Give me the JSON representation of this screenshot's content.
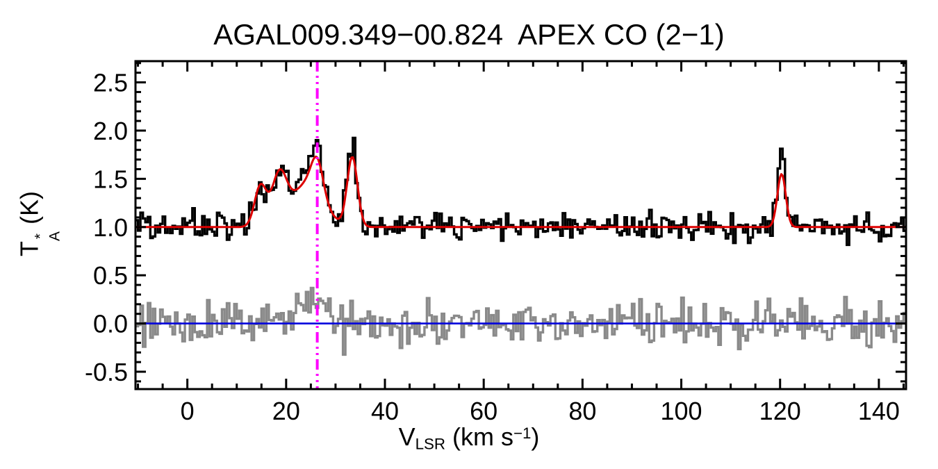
{
  "chart_data": {
    "type": "line",
    "title": "AGAL009.349−00.824  APEX CO (2−1)",
    "xlabel": {
      "main": "V",
      "sub": "LSR",
      "unit": " (km s",
      "sup": "−1",
      "close": ")"
    },
    "ylabel": {
      "main": "T",
      "sup": "*",
      "sub": "A",
      "unit": " (K)"
    },
    "xlim": [
      -10.5,
      145.5
    ],
    "ylim": [
      -0.68,
      2.72
    ],
    "xticks": {
      "values": [
        0,
        20,
        40,
        60,
        80,
        100,
        120,
        140
      ],
      "labels": [
        "0",
        "20",
        "40",
        "60",
        "80",
        "100",
        "120",
        "140"
      ],
      "minor_step": 5
    },
    "yticks": {
      "values": [
        -0.5,
        0.0,
        0.5,
        1.0,
        1.5,
        2.0,
        2.5
      ],
      "labels": [
        "-0.5",
        "0.0",
        "0.5",
        "1.0",
        "1.5",
        "2.0",
        "2.5"
      ],
      "minor_step": 0.1
    },
    "grid": false,
    "legend": "none",
    "series": {
      "spectrum": {
        "name": "observed CO (2-1) spectrum",
        "style": "histogram",
        "color": "#000000",
        "baseline": 1.0,
        "noise_rms": 0.07,
        "noise_seed": 12345,
        "channel_width": 0.5,
        "components": [
          {
            "center": 14.8,
            "amp": 0.42,
            "sigma": 1.2
          },
          {
            "center": 18.6,
            "amp": 0.5,
            "sigma": 1.5
          },
          {
            "center": 24.3,
            "amp": 0.45,
            "sigma": 3.2
          },
          {
            "center": 26.3,
            "amp": 0.35,
            "sigma": 1.2
          },
          {
            "center": 33.4,
            "amp": 0.72,
            "sigma": 1.05
          },
          {
            "center": 120.3,
            "amp": 0.55,
            "sigma": 0.85
          },
          {
            "center": 25.3,
            "amp": 0.1,
            "sigma": 1.8
          },
          {
            "center": 33.4,
            "amp": 0.1,
            "sigma": 0.6
          },
          {
            "center": 120.3,
            "amp": 0.25,
            "sigma": 0.45
          }
        ]
      },
      "fit": {
        "name": "Gaussian fit",
        "style": "line",
        "color": "#dd0000",
        "baseline": 1.0,
        "sample_step": 0.25,
        "components": [
          {
            "center": 14.8,
            "amp": 0.42,
            "sigma": 1.2
          },
          {
            "center": 18.6,
            "amp": 0.5,
            "sigma": 1.5
          },
          {
            "center": 24.3,
            "amp": 0.45,
            "sigma": 3.2
          },
          {
            "center": 26.3,
            "amp": 0.35,
            "sigma": 1.2
          },
          {
            "center": 33.4,
            "amp": 0.72,
            "sigma": 1.05
          },
          {
            "center": 120.3,
            "amp": 0.55,
            "sigma": 0.85
          }
        ]
      },
      "residual": {
        "name": "fit residual",
        "style": "histogram",
        "color": "#8a8a8a",
        "baseline": 0.0,
        "noise_rms": 0.11,
        "noise_seed": 54321,
        "channel_width": 0.5,
        "components": [
          {
            "center": 25.3,
            "amp": 0.3,
            "sigma": 1.8
          }
        ]
      },
      "zero_line": {
        "name": "zero level",
        "color": "#0000dd",
        "y": 0.0
      },
      "marker_line": {
        "name": "systemic velocity marker",
        "color": "#ff00ff",
        "x": 26.3,
        "style": "dash-dot"
      }
    }
  }
}
